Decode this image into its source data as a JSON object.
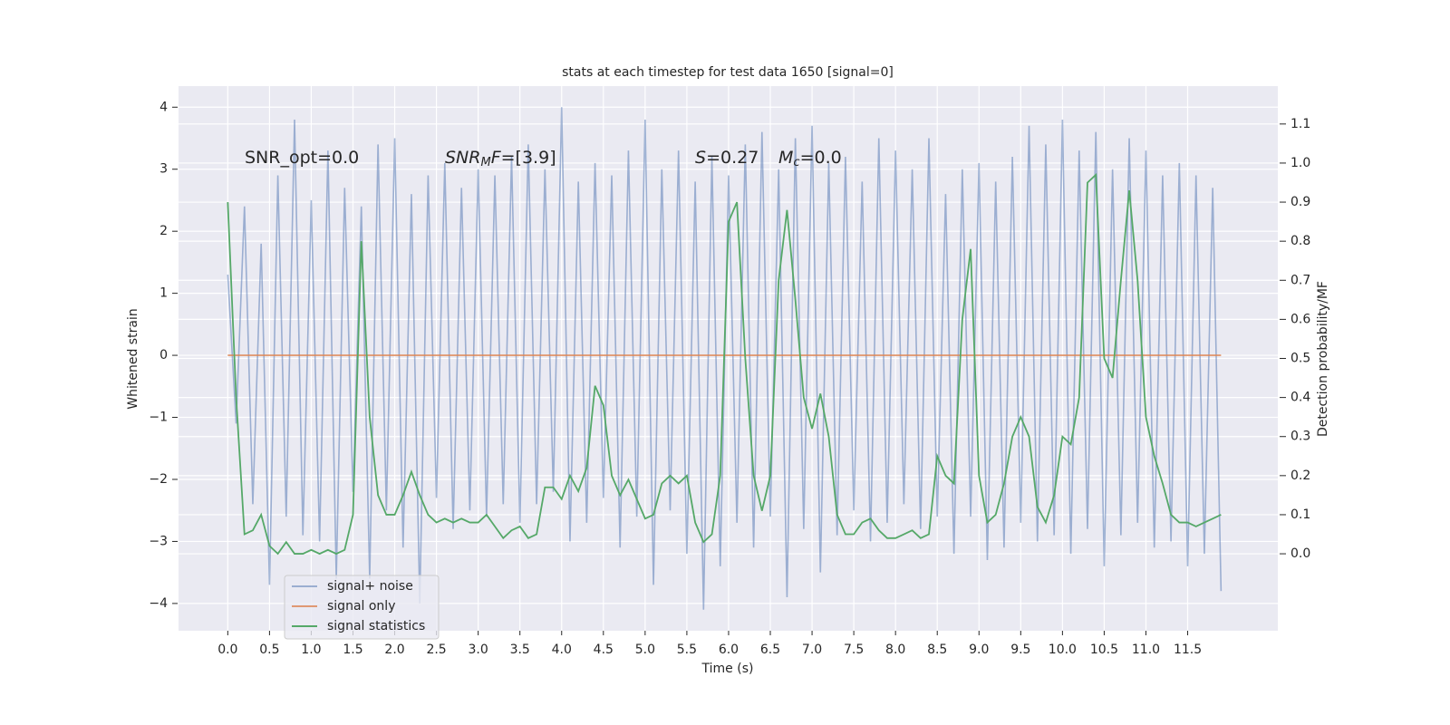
{
  "chart_data": {
    "type": "line",
    "title": "stats at each timestep for test data 1650 [signal=0]",
    "xlabel": "Time (s)",
    "ylabel": "Whitened strain",
    "y2label": "Detection probability/MF",
    "annotations": [
      [
        {
          "text": "SNR_opt=0.0"
        }
      ],
      [
        {
          "text": "SNR",
          "style": "italic"
        },
        {
          "text": "M",
          "style": "italic-sub"
        },
        {
          "text": "F",
          "style": "italic"
        },
        {
          "text": "=[3.9]"
        }
      ],
      [
        {
          "text": "S",
          "style": "italic"
        },
        {
          "text": "=0.27"
        }
      ],
      [
        {
          "text": "M",
          "style": "italic"
        },
        {
          "text": "c",
          "style": "italic-sub"
        },
        {
          "text": "=0.0"
        }
      ]
    ],
    "x": [
      0.0,
      0.1,
      0.2,
      0.3,
      0.4,
      0.5,
      0.6,
      0.7,
      0.8,
      0.9,
      1.0,
      1.1,
      1.2,
      1.3,
      1.4,
      1.5,
      1.6,
      1.7,
      1.8,
      1.9,
      2.0,
      2.1,
      2.2,
      2.3,
      2.4,
      2.5,
      2.6,
      2.7,
      2.8,
      2.9,
      3.0,
      3.1,
      3.2,
      3.3,
      3.4,
      3.5,
      3.6,
      3.7,
      3.8,
      3.9,
      4.0,
      4.1,
      4.2,
      4.3,
      4.4,
      4.5,
      4.6,
      4.7,
      4.8,
      4.9,
      5.0,
      5.1,
      5.2,
      5.3,
      5.4,
      5.5,
      5.6,
      5.7,
      5.8,
      5.9,
      6.0,
      6.1,
      6.2,
      6.3,
      6.4,
      6.5,
      6.6,
      6.7,
      6.8,
      6.9,
      7.0,
      7.1,
      7.2,
      7.3,
      7.4,
      7.5,
      7.6,
      7.7,
      7.8,
      7.9,
      8.0,
      8.1,
      8.2,
      8.3,
      8.4,
      8.5,
      8.6,
      8.7,
      8.8,
      8.9,
      9.0,
      9.1,
      9.2,
      9.3,
      9.4,
      9.5,
      9.6,
      9.7,
      9.8,
      9.9,
      10.0,
      10.1,
      10.2,
      10.3,
      10.4,
      10.5,
      10.6,
      10.7,
      10.8,
      10.9,
      11.0,
      11.1,
      11.2,
      11.3,
      11.4,
      11.5,
      11.6,
      11.7,
      11.8,
      11.9
    ],
    "series": [
      {
        "name": "signal+ noise",
        "color": "#4c72b0",
        "alpha": 0.5,
        "values": [
          1.3,
          -1.1,
          2.4,
          -2.4,
          1.8,
          -3.7,
          2.9,
          -2.6,
          3.8,
          -2.9,
          2.5,
          -3.0,
          3.3,
          -3.6,
          2.7,
          -2.2,
          2.4,
          -3.6,
          3.4,
          -2.5,
          3.5,
          -3.1,
          2.6,
          -4.0,
          2.9,
          -2.3,
          3.1,
          -2.8,
          2.7,
          -2.5,
          3.0,
          -2.6,
          2.9,
          -2.4,
          3.2,
          -2.7,
          3.4,
          -2.4,
          3.0,
          -2.2,
          4.0,
          -3.0,
          2.8,
          -2.7,
          3.1,
          -2.3,
          2.9,
          -3.1,
          3.3,
          -2.6,
          3.8,
          -3.7,
          3.0,
          -2.5,
          3.3,
          -3.2,
          2.8,
          -4.1,
          3.2,
          -3.4,
          2.9,
          -2.7,
          3.4,
          -3.1,
          3.6,
          -2.6,
          3.0,
          -3.9,
          3.5,
          -2.8,
          3.7,
          -3.5,
          3.1,
          -2.9,
          3.2,
          -2.5,
          2.8,
          -3.0,
          3.5,
          -2.7,
          3.3,
          -2.4,
          3.0,
          -2.8,
          3.5,
          -2.6,
          2.6,
          -3.2,
          3.0,
          -2.6,
          3.1,
          -3.3,
          2.8,
          -3.1,
          3.2,
          -2.7,
          3.7,
          -3.0,
          3.4,
          -2.9,
          3.8,
          -3.2,
          3.3,
          -2.8,
          3.6,
          -3.4,
          3.0,
          -2.9,
          3.5,
          -2.7,
          3.3,
          -3.1,
          2.9,
          -3.0,
          3.1,
          -3.4,
          2.9,
          -3.2,
          2.7,
          -3.8
        ]
      },
      {
        "name": "signal only",
        "color": "#dd8452",
        "alpha": 0.8,
        "values": [
          0,
          0,
          0,
          0,
          0,
          0,
          0,
          0,
          0,
          0,
          0,
          0,
          0,
          0,
          0,
          0,
          0,
          0,
          0,
          0,
          0,
          0,
          0,
          0,
          0,
          0,
          0,
          0,
          0,
          0,
          0,
          0,
          0,
          0,
          0,
          0,
          0,
          0,
          0,
          0,
          0,
          0,
          0,
          0,
          0,
          0,
          0,
          0,
          0,
          0,
          0,
          0,
          0,
          0,
          0,
          0,
          0,
          0,
          0,
          0,
          0,
          0,
          0,
          0,
          0,
          0,
          0,
          0,
          0,
          0,
          0,
          0,
          0,
          0,
          0,
          0,
          0,
          0,
          0,
          0,
          0,
          0,
          0,
          0,
          0,
          0,
          0,
          0,
          0,
          0,
          0,
          0,
          0,
          0,
          0,
          0,
          0,
          0,
          0,
          0,
          0,
          0,
          0,
          0,
          0,
          0,
          0,
          0,
          0,
          0,
          0,
          0,
          0,
          0,
          0,
          0,
          0,
          0,
          0,
          0
        ]
      },
      {
        "name": "signal statistics",
        "color": "#55a868",
        "alpha": 1,
        "axis": "y2",
        "values": [
          0.9,
          0.4,
          0.05,
          0.06,
          0.1,
          0.02,
          0.0,
          0.03,
          0.0,
          0.0,
          0.01,
          0.0,
          0.01,
          0.0,
          0.01,
          0.1,
          0.8,
          0.35,
          0.15,
          0.1,
          0.1,
          0.15,
          0.21,
          0.15,
          0.1,
          0.08,
          0.09,
          0.08,
          0.09,
          0.08,
          0.08,
          0.1,
          0.07,
          0.04,
          0.06,
          0.07,
          0.04,
          0.05,
          0.17,
          0.17,
          0.14,
          0.2,
          0.16,
          0.22,
          0.43,
          0.38,
          0.2,
          0.15,
          0.19,
          0.14,
          0.09,
          0.1,
          0.18,
          0.2,
          0.18,
          0.2,
          0.08,
          0.03,
          0.05,
          0.2,
          0.85,
          0.9,
          0.5,
          0.2,
          0.11,
          0.2,
          0.7,
          0.88,
          0.65,
          0.4,
          0.32,
          0.41,
          0.3,
          0.1,
          0.05,
          0.05,
          0.08,
          0.09,
          0.06,
          0.04,
          0.04,
          0.05,
          0.06,
          0.04,
          0.05,
          0.25,
          0.2,
          0.18,
          0.6,
          0.78,
          0.2,
          0.08,
          0.1,
          0.18,
          0.3,
          0.35,
          0.3,
          0.12,
          0.08,
          0.15,
          0.3,
          0.28,
          0.4,
          0.95,
          0.97,
          0.5,
          0.45,
          0.7,
          0.93,
          0.7,
          0.35,
          0.25,
          0.18,
          0.1,
          0.08,
          0.08,
          0.07,
          0.08,
          0.09,
          0.1
        ]
      }
    ],
    "xlim": [
      -0.59,
      12.58
    ],
    "xticks": [
      {
        "value": 0,
        "label": "0.0"
      },
      0.5,
      {
        "value": 1,
        "label": "1.0"
      },
      1.5,
      {
        "value": 2,
        "label": "2.0"
      },
      2.5,
      {
        "value": 3,
        "label": "3.0"
      },
      3.5,
      {
        "value": 4,
        "label": "4.0"
      },
      4.5,
      {
        "value": 5,
        "label": "5.0"
      },
      5.5,
      {
        "value": 6,
        "label": "6.0"
      },
      6.5,
      {
        "value": 7,
        "label": "7.0"
      },
      7.5,
      {
        "value": 8,
        "label": "8.0"
      },
      8.5,
      {
        "value": 9,
        "label": "9.0"
      },
      9.5,
      {
        "value": 10,
        "label": "10.0"
      },
      10.5,
      {
        "value": 11,
        "label": "11.0"
      },
      11.5
    ],
    "ylim": [
      -4.44,
      4.34
    ],
    "yticks": [
      {
        "value": -4,
        "label": "−4"
      },
      {
        "value": -3,
        "label": "−3"
      },
      {
        "value": -2,
        "label": "−2"
      },
      {
        "value": -1,
        "label": "−1"
      },
      0,
      1,
      2,
      3,
      4
    ],
    "y2lim": [
      -0.197,
      1.197
    ],
    "y2ticks": [
      {
        "value": 0,
        "label": "0.0"
      },
      0.1,
      0.2,
      0.3,
      0.4,
      0.5,
      0.6,
      0.7,
      0.8,
      0.9,
      {
        "value": 1,
        "label": "1.0"
      },
      1.1
    ],
    "grid": true,
    "legend": "lower left"
  }
}
